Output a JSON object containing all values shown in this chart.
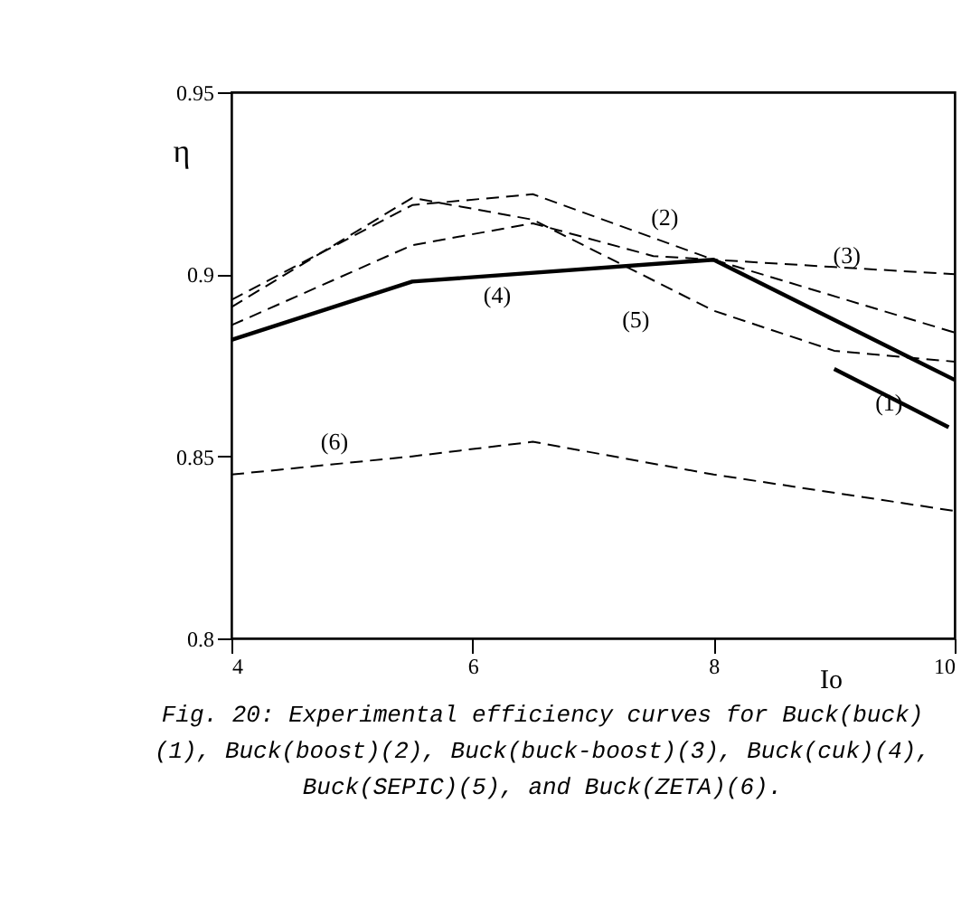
{
  "chart_data": {
    "type": "line",
    "xlabel": "Io",
    "ylabel": "η",
    "xlim": [
      4,
      10
    ],
    "ylim": [
      0.8,
      0.95
    ],
    "xticks": [
      4,
      6,
      8,
      10
    ],
    "yticks": [
      0.8,
      0.85,
      0.9,
      0.95
    ],
    "marker": "none",
    "series": [
      {
        "name": "(1)",
        "color": "#000000",
        "line_style": "solid",
        "x": [
          9,
          9.95
        ],
        "values": [
          0.874,
          0.858
        ]
      },
      {
        "name": "(2)",
        "color": "#000000",
        "line_style": "dashed",
        "x": [
          4,
          5.5,
          6.5,
          8,
          10
        ],
        "values": [
          0.893,
          0.919,
          0.922,
          0.904,
          0.884
        ]
      },
      {
        "name": "(3)",
        "color": "#000000",
        "line_style": "dashed",
        "x": [
          4,
          5.5,
          6.5,
          7.5,
          8,
          9,
          10
        ],
        "values": [
          0.886,
          0.908,
          0.914,
          0.905,
          0.904,
          0.902,
          0.9
        ]
      },
      {
        "name": "(4)",
        "color": "#000000",
        "line_style": "solid",
        "x": [
          4,
          5.5,
          8,
          10
        ],
        "values": [
          0.882,
          0.898,
          0.904,
          0.871
        ]
      },
      {
        "name": "(5)",
        "color": "#000000",
        "line_style": "dashed",
        "x": [
          4,
          5.5,
          6.5,
          8,
          9,
          10
        ],
        "values": [
          0.891,
          0.921,
          0.915,
          0.89,
          0.879,
          0.876
        ]
      },
      {
        "name": "(6)",
        "color": "#000000",
        "line_style": "dashed",
        "x": [
          4,
          5.5,
          6.5,
          8,
          10
        ],
        "values": [
          0.845,
          0.85,
          0.854,
          0.845,
          0.835
        ]
      }
    ],
    "annotations": [
      "Fig. 20: Experimental efficiency curves for Buck(buck)(1), Buck(boost)(2), Buck(buck-boost)(3), Buck(cuk)(4), Buck(SEPIC)(5), and Buck(ZETA)(6)."
    ]
  }
}
